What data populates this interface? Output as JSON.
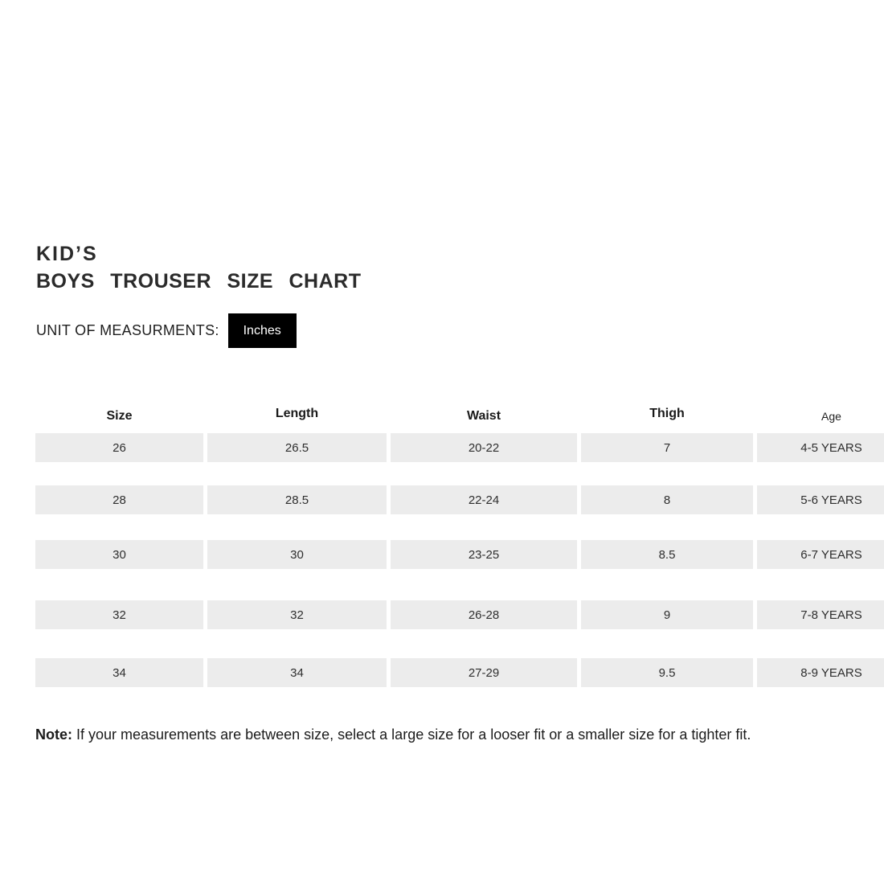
{
  "header": {
    "title_line1": "KID’S",
    "title_line2": "BOYS TROUSER SIZE CHART"
  },
  "unit": {
    "label": "UNIT OF MEASURMENTS:",
    "value": "Inches"
  },
  "table": {
    "columns": [
      "Size",
      "Length",
      "Waist",
      "Thigh",
      "Age"
    ],
    "rows": [
      [
        "26",
        "26.5",
        "20-22",
        "7",
        "4-5 YEARS"
      ],
      [
        "28",
        "28.5",
        "22-24",
        "8",
        "5-6 YEARS"
      ],
      [
        "30",
        "30",
        "23-25",
        "8.5",
        "6-7 YEARS"
      ],
      [
        "32",
        "32",
        "26-28",
        "9",
        "7-8 YEARS"
      ],
      [
        "34",
        "34",
        "27-29",
        "9.5",
        "8-9 YEARS"
      ]
    ]
  },
  "note": {
    "label": "Note:",
    "text": " If your measurements are between size, select a large size for a looser fit or a smaller size for a tighter fit."
  },
  "colors": {
    "cell_background": "#ececec",
    "button_background": "#000000",
    "button_text": "#ffffff",
    "title_text": "#2b2b2b"
  }
}
